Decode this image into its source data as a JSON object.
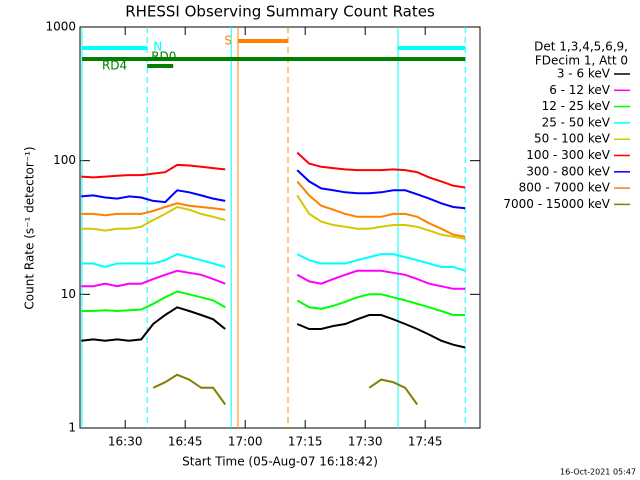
{
  "chart_data": {
    "type": "line",
    "title": "RHESSI Observing Summary Count Rates",
    "x_label": "Start Time (05-Aug-07 16:18:42)",
    "y_label": "Count Rate (s⁻¹ detector⁻¹)",
    "footer": "16-Oct-2021 05:47",
    "legend_header": [
      "Det 1,3,4,5,6,9,",
      "FDecim 1, Att 0"
    ],
    "log_y": true,
    "xlim": [
      978.7,
      1078.7
    ],
    "xticks": [
      {
        "value": 990,
        "label": "16:30"
      },
      {
        "value": 1005,
        "label": "16:45"
      },
      {
        "value": 1020,
        "label": "17:00"
      },
      {
        "value": 1035,
        "label": "17:15"
      },
      {
        "value": 1050,
        "label": "17:30"
      },
      {
        "value": 1065,
        "label": "17:45"
      }
    ],
    "ylim": [
      1,
      1000
    ],
    "yticks": [
      1,
      10,
      100,
      1000
    ],
    "x": [
      979,
      982,
      985,
      988,
      991,
      994,
      997,
      1000,
      1003,
      1006,
      1009,
      1012,
      1015,
      1024,
      1033,
      1036,
      1039,
      1042,
      1045,
      1048,
      1051,
      1054,
      1057,
      1060,
      1063,
      1066,
      1069,
      1072,
      1075
    ],
    "series": [
      {
        "name": "3 - 6 keV",
        "color": "#000000",
        "values": [
          4.5,
          4.6,
          4.5,
          4.6,
          4.5,
          4.6,
          6,
          7,
          8,
          7.5,
          7,
          6.5,
          5.5,
          null,
          6,
          5.5,
          5.5,
          5.8,
          6,
          6.5,
          7,
          7,
          6.5,
          6,
          5.5,
          5,
          4.5,
          4.2,
          4
        ]
      },
      {
        "name": "6 - 12 keV",
        "color": "#ff00ff",
        "values": [
          11.5,
          11.5,
          12,
          11.5,
          12,
          12,
          13,
          14,
          15,
          14.5,
          14,
          13,
          12,
          null,
          14,
          12.5,
          12,
          13,
          14,
          15,
          15,
          15,
          14.5,
          14,
          13,
          12,
          11.5,
          11,
          11
        ]
      },
      {
        "name": "12 - 25 keV",
        "color": "#00ff00",
        "values": [
          7.5,
          7.5,
          7.6,
          7.5,
          7.6,
          7.7,
          8.5,
          9.5,
          10.5,
          10,
          9.5,
          9,
          8,
          null,
          9,
          8,
          7.8,
          8.2,
          8.8,
          9.5,
          10,
          10,
          9.5,
          9,
          8.5,
          8,
          7.5,
          7,
          7
        ]
      },
      {
        "name": "25 - 50 keV",
        "color": "#00ffff",
        "values": [
          17,
          17,
          16,
          17,
          17,
          17,
          17,
          18,
          20,
          19,
          18,
          17,
          16,
          null,
          20,
          18,
          17,
          17,
          17,
          18,
          19,
          20,
          20,
          19,
          18,
          17,
          16,
          16,
          15
        ]
      },
      {
        "name": "50 - 100 keV",
        "color": "#d4c800",
        "values": [
          31,
          31,
          30,
          31,
          31,
          32,
          36,
          40,
          45,
          43,
          40,
          38,
          36,
          null,
          55,
          40,
          35,
          33,
          32,
          31,
          31,
          32,
          33,
          33,
          32,
          30,
          28,
          27,
          26
        ]
      },
      {
        "name": "100 - 300 keV",
        "color": "#ff0000",
        "values": [
          76,
          75,
          76,
          77,
          78,
          78,
          80,
          82,
          93,
          92,
          90,
          88,
          86,
          null,
          115,
          95,
          90,
          88,
          86,
          85,
          85,
          85,
          86,
          85,
          82,
          75,
          70,
          65,
          63
        ]
      },
      {
        "name": "300 - 800 keV",
        "color": "#0000ff",
        "values": [
          54,
          55,
          53,
          52,
          54,
          53,
          50,
          49,
          60,
          58,
          55,
          52,
          50,
          null,
          85,
          70,
          62,
          60,
          58,
          57,
          57,
          58,
          60,
          60,
          56,
          52,
          48,
          45,
          44
        ]
      },
      {
        "name": "800 - 7000 keV",
        "color": "#ff8000",
        "values": [
          40,
          40,
          39,
          40,
          40,
          40,
          42,
          45,
          48,
          46,
          45,
          44,
          43,
          null,
          70,
          55,
          46,
          43,
          40,
          38,
          38,
          38,
          40,
          40,
          38,
          34,
          31,
          28,
          27
        ]
      },
      {
        "name": "7000 - 15000 keV",
        "color": "#808000",
        "values": [
          null,
          null,
          null,
          null,
          null,
          null,
          2,
          2.2,
          2.5,
          2.3,
          2,
          2,
          1.5,
          null,
          null,
          null,
          null,
          null,
          null,
          null,
          2,
          2.3,
          2.2,
          2,
          1.5,
          null,
          null,
          null,
          null
        ]
      }
    ],
    "bars": [
      {
        "color": "#00ffff",
        "start": 979.2,
        "end": 995.5
      },
      {
        "color": "#00ffff",
        "start": 1058.2,
        "end": 1075
      },
      {
        "color": "#008000",
        "start": 979.2,
        "end": 1075
      },
      {
        "color": "#008000",
        "start": 995.5,
        "end": 1002,
        "label": "RD4"
      },
      {
        "color": "#ff8000",
        "start": 1018.2,
        "end": 1030.7,
        "label": "S"
      }
    ],
    "flags": [
      {
        "text": "N",
        "color": "#00ffff",
        "time": 997
      },
      {
        "text": "RD0",
        "color": "#008000",
        "time": 996.5
      }
    ],
    "markers": [
      {
        "time": 979.2,
        "color": "#00ffff",
        "dashed": false
      },
      {
        "time": 995.5,
        "color": "#00ffff",
        "dashed": true
      },
      {
        "time": 1016.5,
        "color": "#00ffff",
        "dashed": false
      },
      {
        "time": 1018.2,
        "color": "#ff8000",
        "dashed": false
      },
      {
        "time": 1030.7,
        "color": "#ff8000",
        "dashed": true
      },
      {
        "time": 1058.2,
        "color": "#00ffff",
        "dashed": false
      },
      {
        "time": 1075,
        "color": "#00ffff",
        "dashed": true
      }
    ]
  }
}
